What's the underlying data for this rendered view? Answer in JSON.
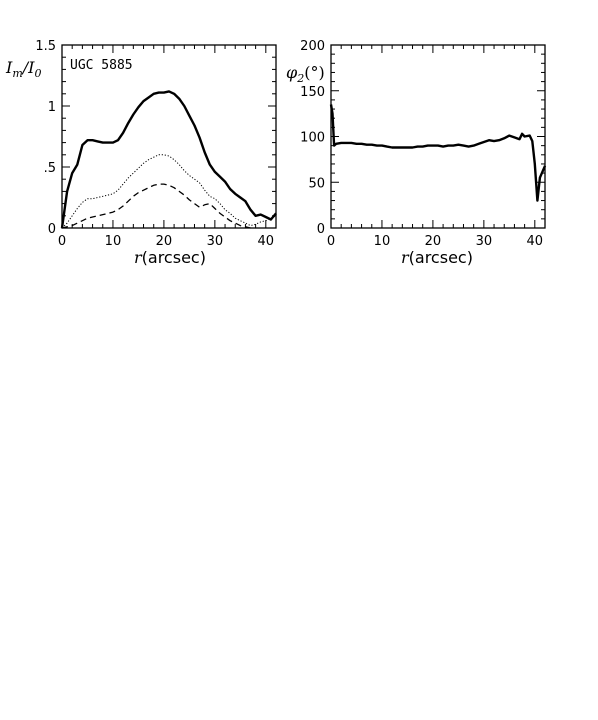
{
  "chart_data": [
    {
      "type": "line",
      "panel": "left",
      "ylabel": "I_m/I_0",
      "xlabel": "r(arcsec)",
      "annotation": "UGC 5885",
      "xlim": [
        0,
        42
      ],
      "ylim": [
        0,
        1.5
      ],
      "x_ticks": [
        0,
        10,
        20,
        30,
        40
      ],
      "x_tick_labels": [
        "0",
        "10",
        "20",
        "30",
        "40"
      ],
      "y_ticks": [
        0,
        0.5,
        1,
        1.5
      ],
      "y_tick_labels": [
        "0",
        ".5",
        "1",
        "1.5"
      ],
      "series": [
        {
          "style": "solid-thick",
          "x": [
            0,
            1,
            2,
            3,
            4,
            5,
            6,
            7,
            8,
            9,
            10,
            11,
            12,
            13,
            14,
            15,
            16,
            17,
            18,
            19,
            20,
            21,
            22,
            23,
            24,
            25,
            26,
            27,
            28,
            29,
            30,
            31,
            32,
            33,
            34,
            35,
            36,
            37,
            38,
            39,
            40,
            41,
            42
          ],
          "y": [
            0,
            0.3,
            0.45,
            0.52,
            0.68,
            0.72,
            0.72,
            0.71,
            0.7,
            0.7,
            0.7,
            0.72,
            0.78,
            0.86,
            0.93,
            0.99,
            1.04,
            1.07,
            1.1,
            1.11,
            1.11,
            1.12,
            1.1,
            1.06,
            1.0,
            0.92,
            0.84,
            0.74,
            0.62,
            0.52,
            0.46,
            0.42,
            0.38,
            0.32,
            0.28,
            0.25,
            0.22,
            0.15,
            0.1,
            0.11,
            0.09,
            0.07,
            0.12
          ]
        },
        {
          "style": "dotted",
          "x": [
            0,
            1,
            2,
            3,
            4,
            5,
            6,
            7,
            8,
            9,
            10,
            11,
            12,
            13,
            14,
            15,
            16,
            17,
            18,
            19,
            20,
            21,
            22,
            23,
            24,
            25,
            26,
            27,
            28,
            29,
            30,
            31,
            32,
            33,
            34,
            35,
            36,
            37,
            38,
            39,
            40,
            41,
            42
          ],
          "y": [
            0,
            0.04,
            0.1,
            0.16,
            0.21,
            0.24,
            0.24,
            0.25,
            0.26,
            0.27,
            0.28,
            0.31,
            0.36,
            0.41,
            0.45,
            0.49,
            0.53,
            0.56,
            0.58,
            0.6,
            0.6,
            0.59,
            0.56,
            0.52,
            0.47,
            0.43,
            0.4,
            0.37,
            0.31,
            0.26,
            0.24,
            0.2,
            0.15,
            0.12,
            0.08,
            0.06,
            0.04,
            0.02,
            0.03,
            0.05,
            0.06,
            0.08,
            0.1
          ]
        },
        {
          "style": "dashed",
          "x": [
            0,
            1,
            2,
            3,
            4,
            5,
            6,
            7,
            8,
            9,
            10,
            11,
            12,
            13,
            14,
            15,
            16,
            17,
            18,
            19,
            20,
            21,
            22,
            23,
            24,
            25,
            26,
            27,
            28,
            29,
            30,
            31,
            32,
            33,
            34,
            35,
            36,
            37
          ],
          "y": [
            0,
            0.01,
            0.02,
            0.04,
            0.06,
            0.08,
            0.09,
            0.1,
            0.11,
            0.12,
            0.13,
            0.15,
            0.18,
            0.22,
            0.26,
            0.29,
            0.31,
            0.33,
            0.35,
            0.36,
            0.36,
            0.35,
            0.33,
            0.3,
            0.27,
            0.23,
            0.2,
            0.17,
            0.19,
            0.2,
            0.16,
            0.12,
            0.09,
            0.06,
            0.04,
            0.02,
            0.01,
            0.0
          ]
        }
      ]
    },
    {
      "type": "line",
      "panel": "right",
      "ylabel": "φ2(°)",
      "xlabel": "r(arcsec)",
      "xlim": [
        0,
        42
      ],
      "ylim": [
        0,
        200
      ],
      "x_ticks": [
        0,
        10,
        20,
        30,
        40
      ],
      "x_tick_labels": [
        "0",
        "10",
        "20",
        "30",
        "40"
      ],
      "y_ticks": [
        0,
        50,
        100,
        150,
        200
      ],
      "y_tick_labels": [
        "0",
        "50",
        "100",
        "150",
        "200"
      ],
      "series": [
        {
          "style": "solid-thick",
          "x": [
            0,
            0.3,
            0.6,
            1,
            2,
            3,
            4,
            5,
            6,
            7,
            8,
            9,
            10,
            11,
            12,
            13,
            14,
            15,
            16,
            17,
            18,
            19,
            20,
            21,
            22,
            23,
            24,
            25,
            26,
            27,
            28,
            29,
            30,
            31,
            32,
            33,
            34,
            35,
            36,
            37,
            37.5,
            38,
            39,
            39.5,
            40,
            40.5,
            41,
            42
          ],
          "y": [
            135,
            125,
            90,
            92,
            93,
            93,
            93,
            92,
            92,
            91,
            91,
            90,
            90,
            89,
            88,
            88,
            88,
            88,
            88,
            89,
            89,
            90,
            90,
            90,
            89,
            90,
            90,
            91,
            90,
            89,
            90,
            92,
            94,
            96,
            95,
            96,
            98,
            101,
            99,
            97,
            103,
            100,
            101,
            95,
            70,
            30,
            55,
            68
          ]
        }
      ]
    }
  ]
}
